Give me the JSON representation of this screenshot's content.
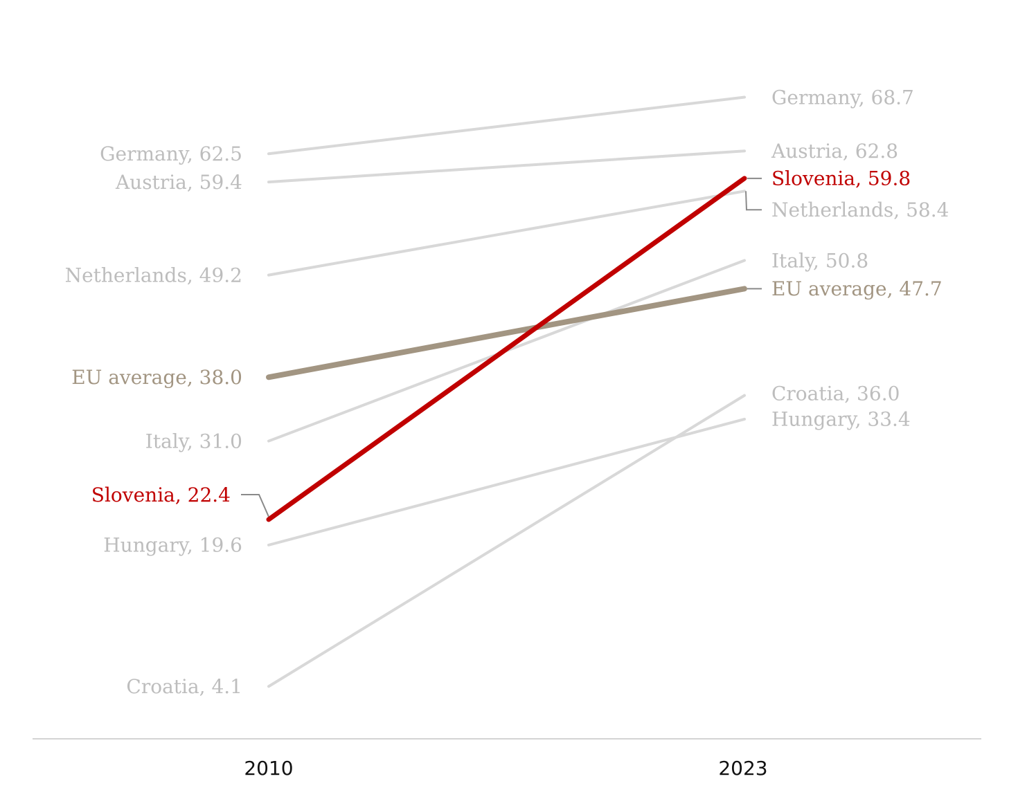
{
  "chart_data": {
    "type": "line",
    "title": "",
    "xlabel": "",
    "ylabel": "",
    "x": [
      "2010",
      "2023"
    ],
    "ylim": [
      0,
      75
    ],
    "grid": false,
    "legend": "none",
    "series": [
      {
        "name": "Germany",
        "values": [
          62.5,
          68.7
        ],
        "label_start": "Germany, 62.5",
        "label_end": "Germany, 68.7",
        "color": "#d8d8d8",
        "label_color": "#bdbdbd",
        "emphasis": false
      },
      {
        "name": "Austria",
        "values": [
          59.4,
          62.8
        ],
        "label_start": "Austria, 59.4",
        "label_end": "Austria, 62.8",
        "color": "#d8d8d8",
        "label_color": "#bdbdbd",
        "emphasis": false
      },
      {
        "name": "Netherlands",
        "values": [
          49.2,
          58.4
        ],
        "label_start": "Netherlands, 49.2",
        "label_end": "Netherlands, 58.4",
        "color": "#d8d8d8",
        "label_color": "#bdbdbd",
        "emphasis": false
      },
      {
        "name": "Italy",
        "values": [
          31.0,
          50.8
        ],
        "label_start": "Italy, 31.0",
        "label_end": "Italy, 50.8",
        "color": "#d8d8d8",
        "label_color": "#bdbdbd",
        "emphasis": false
      },
      {
        "name": "Hungary",
        "values": [
          19.6,
          33.4
        ],
        "label_start": "Hungary, 19.6",
        "label_end": "Hungary, 33.4",
        "color": "#d8d8d8",
        "label_color": "#bdbdbd",
        "emphasis": false
      },
      {
        "name": "Croatia",
        "values": [
          4.1,
          36.0
        ],
        "label_start": "Croatia, 4.1",
        "label_end": "Croatia, 36.0",
        "color": "#d8d8d8",
        "label_color": "#bdbdbd",
        "emphasis": false
      },
      {
        "name": "EU average",
        "values": [
          38.0,
          47.7
        ],
        "label_start": "EU average, 38.0",
        "label_end": "EU average, 47.7",
        "color": "#a29582",
        "label_color": "#a29582",
        "emphasis": true
      },
      {
        "name": "Slovenia",
        "values": [
          22.4,
          59.8
        ],
        "label_start": "Slovenia, 22.4",
        "label_end": "Slovenia, 59.8",
        "color": "#c00000",
        "label_color": "#c00000",
        "emphasis": true
      }
    ]
  }
}
